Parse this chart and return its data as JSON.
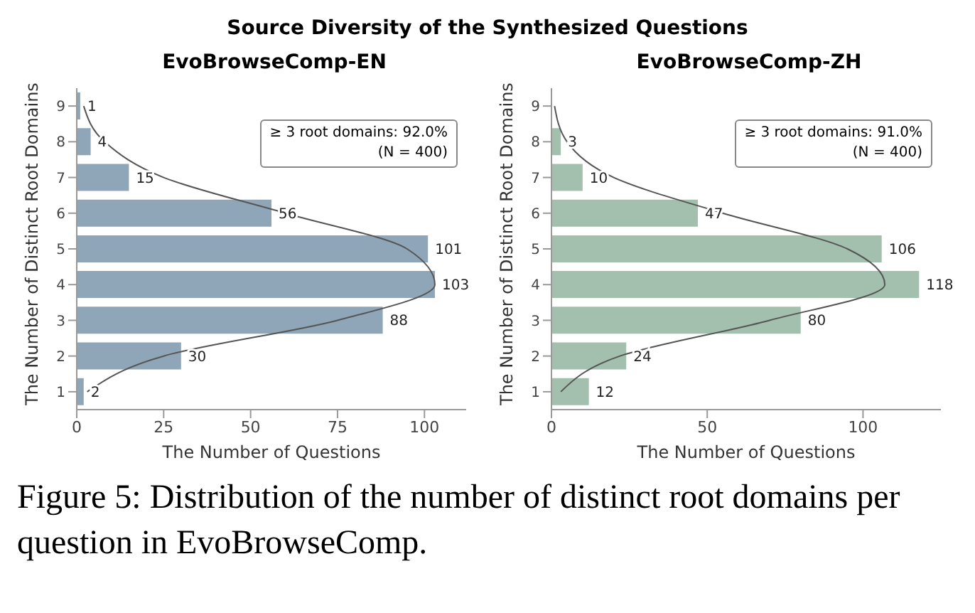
{
  "chart_data": [
    {
      "type": "bar",
      "orientation": "horizontal",
      "title": "Source Diversity of the Synthesized Questions",
      "subtitle": "EvoBrowseComp-EN",
      "xlabel": "The Number of Questions",
      "ylabel": "The Number of Distinct Root Domains",
      "categories": [
        "9",
        "8",
        "7",
        "6",
        "5",
        "4",
        "3",
        "2",
        "1"
      ],
      "series": [
        {
          "color": "#8fa5b8",
          "values": [
            1,
            4,
            15,
            56,
            101,
            103,
            88,
            30,
            2
          ],
          "value_labels": [
            "1",
            "4",
            "15",
            "56",
            "101",
            "103",
            "88",
            "30",
            "2"
          ]
        },
        {
          "type": "line",
          "color": "#555555",
          "values": [
            2,
            8,
            25,
            60,
            95,
            103,
            75,
            25,
            3
          ]
        }
      ],
      "xlim": [
        0,
        112
      ],
      "xticks": [
        0,
        25,
        50,
        75,
        100
      ],
      "grid": false,
      "legend": false,
      "annotations": [
        "≥ 3 root domains: 92.0%",
        "(N = 400)",
        "Figure 5: Distribution of the number of distinct root domains per question in EvoBrowseComp."
      ]
    },
    {
      "type": "bar",
      "orientation": "horizontal",
      "subtitle": "EvoBrowseComp-ZH",
      "xlabel": "The Number of Questions",
      "ylabel": "The Number of Distinct Root Domains",
      "categories": [
        "9",
        "8",
        "7",
        "6",
        "5",
        "4",
        "3",
        "2",
        "1"
      ],
      "series": [
        {
          "color": "#a3bfae",
          "values": [
            0,
            3,
            10,
            47,
            106,
            118,
            80,
            24,
            12
          ],
          "value_labels": [
            null,
            "3",
            "10",
            "47",
            "106",
            "118",
            "80",
            "24",
            "12"
          ]
        },
        {
          "type": "line",
          "color": "#555555",
          "values": [
            1,
            5,
            20,
            55,
            95,
            107,
            70,
            22,
            3
          ]
        }
      ],
      "xlim": [
        0,
        125
      ],
      "xticks": [
        0,
        50,
        100
      ],
      "grid": false,
      "legend": false,
      "annotations": [
        "≥ 3 root domains: 91.0%",
        "(N = 400)"
      ]
    }
  ]
}
